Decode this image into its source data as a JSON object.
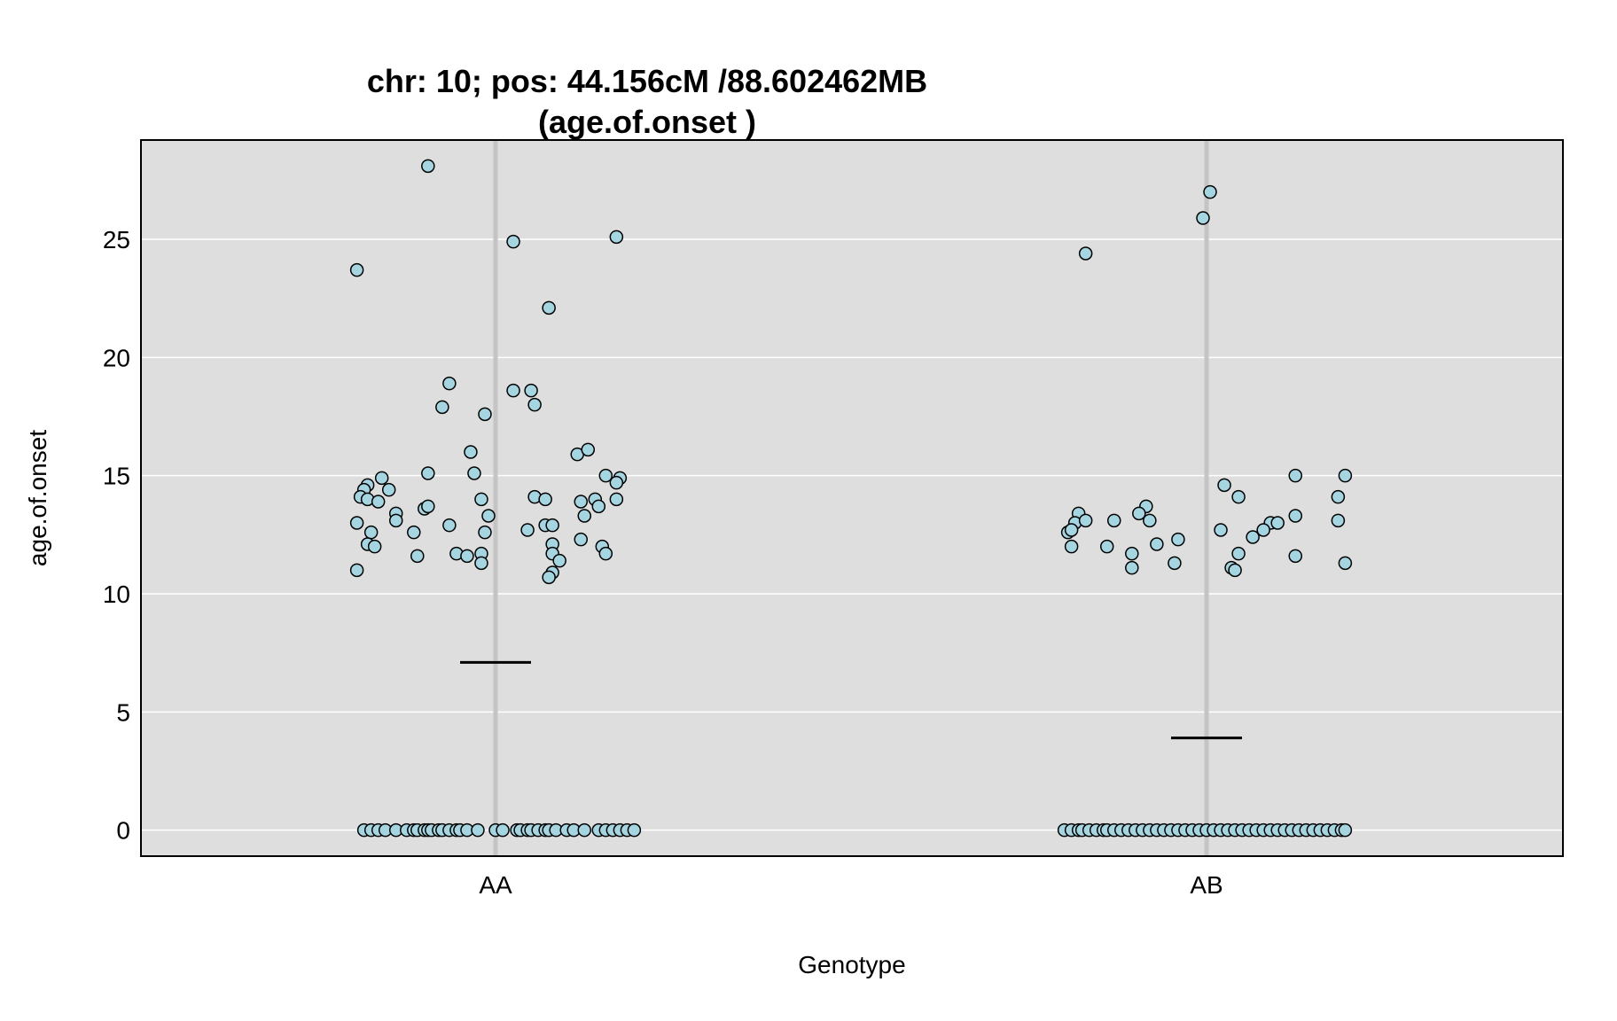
{
  "chart_data": {
    "type": "scatter",
    "title_line1": "chr: 10; pos: 44.156cM /88.602462MB",
    "title_line2": "(age.of.onset )",
    "xlabel": "Genotype",
    "ylabel": "age.of.onset",
    "categories": [
      "AA",
      "AB"
    ],
    "ylim": [
      -1.1,
      29.2
    ],
    "yticks": [
      0,
      5,
      10,
      15,
      20,
      25
    ],
    "grid": true,
    "colors": {
      "panel": "#dedede",
      "point_fill": "#a6d5e2",
      "point_stroke": "#000000",
      "gridline": "#ffffff",
      "category_line": "#c4c4c4",
      "mean_line": "#000000"
    },
    "means": [
      7.1,
      3.9
    ],
    "series": [
      {
        "category": "AA",
        "points": [
          {
            "dx": -0.39,
            "y": 23.7
          },
          {
            "dx": -0.19,
            "y": 28.1
          },
          {
            "dx": 0.05,
            "y": 24.9
          },
          {
            "dx": 0.15,
            "y": 22.1
          },
          {
            "dx": 0.34,
            "y": 25.1
          },
          {
            "dx": -0.13,
            "y": 18.9
          },
          {
            "dx": -0.15,
            "y": 17.9
          },
          {
            "dx": -0.03,
            "y": 17.6
          },
          {
            "dx": 0.05,
            "y": 18.6
          },
          {
            "dx": 0.1,
            "y": 18.6
          },
          {
            "dx": 0.11,
            "y": 18.0
          },
          {
            "dx": -0.07,
            "y": 16.0
          },
          {
            "dx": 0.23,
            "y": 15.9
          },
          {
            "dx": 0.26,
            "y": 16.1
          },
          {
            "dx": -0.32,
            "y": 14.9
          },
          {
            "dx": -0.19,
            "y": 15.1
          },
          {
            "dx": -0.06,
            "y": 15.1
          },
          {
            "dx": 0.31,
            "y": 15.0
          },
          {
            "dx": 0.35,
            "y": 14.9
          },
          {
            "dx": 0.34,
            "y": 14.7
          },
          {
            "dx": -0.36,
            "y": 14.6
          },
          {
            "dx": -0.37,
            "y": 14.4
          },
          {
            "dx": -0.38,
            "y": 14.1
          },
          {
            "dx": -0.36,
            "y": 14.0
          },
          {
            "dx": -0.3,
            "y": 14.4
          },
          {
            "dx": -0.33,
            "y": 13.9
          },
          {
            "dx": -0.04,
            "y": 14.0
          },
          {
            "dx": 0.11,
            "y": 14.1
          },
          {
            "dx": 0.14,
            "y": 14.0
          },
          {
            "dx": 0.24,
            "y": 13.9
          },
          {
            "dx": 0.28,
            "y": 14.0
          },
          {
            "dx": 0.29,
            "y": 13.7
          },
          {
            "dx": 0.34,
            "y": 14.0
          },
          {
            "dx": -0.28,
            "y": 13.4
          },
          {
            "dx": -0.28,
            "y": 13.1
          },
          {
            "dx": -0.2,
            "y": 13.6
          },
          {
            "dx": -0.19,
            "y": 13.7
          },
          {
            "dx": -0.02,
            "y": 13.3
          },
          {
            "dx": 0.25,
            "y": 13.3
          },
          {
            "dx": -0.39,
            "y": 13.0
          },
          {
            "dx": -0.13,
            "y": 12.9
          },
          {
            "dx": 0.14,
            "y": 12.9
          },
          {
            "dx": 0.16,
            "y": 12.9
          },
          {
            "dx": -0.35,
            "y": 12.6
          },
          {
            "dx": -0.23,
            "y": 12.6
          },
          {
            "dx": -0.03,
            "y": 12.6
          },
          {
            "dx": 0.09,
            "y": 12.7
          },
          {
            "dx": 0.24,
            "y": 12.3
          },
          {
            "dx": -0.36,
            "y": 12.1
          },
          {
            "dx": -0.34,
            "y": 12.0
          },
          {
            "dx": 0.16,
            "y": 12.1
          },
          {
            "dx": 0.3,
            "y": 12.0
          },
          {
            "dx": -0.22,
            "y": 11.6
          },
          {
            "dx": -0.11,
            "y": 11.7
          },
          {
            "dx": -0.08,
            "y": 11.6
          },
          {
            "dx": -0.04,
            "y": 11.7
          },
          {
            "dx": -0.04,
            "y": 11.3
          },
          {
            "dx": 0.16,
            "y": 11.7
          },
          {
            "dx": 0.18,
            "y": 11.4
          },
          {
            "dx": 0.31,
            "y": 11.7
          },
          {
            "dx": -0.39,
            "y": 11.0
          },
          {
            "dx": 0.16,
            "y": 10.9
          },
          {
            "dx": 0.15,
            "y": 10.7
          },
          {
            "dx": -0.37,
            "y": 0
          },
          {
            "dx": -0.35,
            "y": 0
          },
          {
            "dx": -0.33,
            "y": 0
          },
          {
            "dx": -0.31,
            "y": 0
          },
          {
            "dx": -0.28,
            "y": 0
          },
          {
            "dx": -0.25,
            "y": 0
          },
          {
            "dx": -0.23,
            "y": 0
          },
          {
            "dx": -0.22,
            "y": 0
          },
          {
            "dx": -0.2,
            "y": 0
          },
          {
            "dx": -0.19,
            "y": 0
          },
          {
            "dx": -0.18,
            "y": 0
          },
          {
            "dx": -0.16,
            "y": 0
          },
          {
            "dx": -0.15,
            "y": 0
          },
          {
            "dx": -0.13,
            "y": 0
          },
          {
            "dx": -0.11,
            "y": 0
          },
          {
            "dx": -0.1,
            "y": 0
          },
          {
            "dx": -0.08,
            "y": 0
          },
          {
            "dx": -0.05,
            "y": 0
          },
          {
            "dx": 0.0,
            "y": 0
          },
          {
            "dx": 0.02,
            "y": 0
          },
          {
            "dx": 0.06,
            "y": 0
          },
          {
            "dx": 0.07,
            "y": 0
          },
          {
            "dx": 0.09,
            "y": 0
          },
          {
            "dx": 0.1,
            "y": 0
          },
          {
            "dx": 0.12,
            "y": 0
          },
          {
            "dx": 0.14,
            "y": 0
          },
          {
            "dx": 0.15,
            "y": 0
          },
          {
            "dx": 0.17,
            "y": 0
          },
          {
            "dx": 0.2,
            "y": 0
          },
          {
            "dx": 0.22,
            "y": 0
          },
          {
            "dx": 0.25,
            "y": 0
          },
          {
            "dx": 0.29,
            "y": 0
          },
          {
            "dx": 0.31,
            "y": 0
          },
          {
            "dx": 0.33,
            "y": 0
          },
          {
            "dx": 0.35,
            "y": 0
          },
          {
            "dx": 0.37,
            "y": 0
          },
          {
            "dx": 0.39,
            "y": 0
          }
        ]
      },
      {
        "category": "AB",
        "points": [
          {
            "dx": 0.01,
            "y": 27.0
          },
          {
            "dx": -0.01,
            "y": 25.9
          },
          {
            "dx": -0.34,
            "y": 24.4
          },
          {
            "dx": 0.25,
            "y": 15.0
          },
          {
            "dx": 0.39,
            "y": 15.0
          },
          {
            "dx": 0.05,
            "y": 14.6
          },
          {
            "dx": 0.09,
            "y": 14.1
          },
          {
            "dx": 0.37,
            "y": 14.1
          },
          {
            "dx": -0.36,
            "y": 13.4
          },
          {
            "dx": -0.17,
            "y": 13.7
          },
          {
            "dx": -0.19,
            "y": 13.4
          },
          {
            "dx": 0.25,
            "y": 13.3
          },
          {
            "dx": -0.37,
            "y": 13.0
          },
          {
            "dx": -0.34,
            "y": 13.1
          },
          {
            "dx": -0.26,
            "y": 13.1
          },
          {
            "dx": -0.16,
            "y": 13.1
          },
          {
            "dx": 0.18,
            "y": 13.0
          },
          {
            "dx": 0.2,
            "y": 13.0
          },
          {
            "dx": 0.37,
            "y": 13.1
          },
          {
            "dx": -0.39,
            "y": 12.6
          },
          {
            "dx": -0.38,
            "y": 12.7
          },
          {
            "dx": 0.04,
            "y": 12.7
          },
          {
            "dx": 0.16,
            "y": 12.7
          },
          {
            "dx": 0.13,
            "y": 12.4
          },
          {
            "dx": -0.08,
            "y": 12.3
          },
          {
            "dx": -0.38,
            "y": 12.0
          },
          {
            "dx": -0.28,
            "y": 12.0
          },
          {
            "dx": -0.14,
            "y": 12.1
          },
          {
            "dx": -0.21,
            "y": 11.7
          },
          {
            "dx": 0.09,
            "y": 11.7
          },
          {
            "dx": 0.25,
            "y": 11.6
          },
          {
            "dx": -0.09,
            "y": 11.3
          },
          {
            "dx": 0.39,
            "y": 11.3
          },
          {
            "dx": -0.21,
            "y": 11.1
          },
          {
            "dx": 0.07,
            "y": 11.1
          },
          {
            "dx": 0.08,
            "y": 11.0
          },
          {
            "dx": -0.4,
            "y": 0
          },
          {
            "dx": -0.38,
            "y": 0
          },
          {
            "dx": -0.36,
            "y": 0
          },
          {
            "dx": -0.35,
            "y": 0
          },
          {
            "dx": -0.33,
            "y": 0
          },
          {
            "dx": -0.31,
            "y": 0
          },
          {
            "dx": -0.29,
            "y": 0
          },
          {
            "dx": -0.28,
            "y": 0
          },
          {
            "dx": -0.26,
            "y": 0
          },
          {
            "dx": -0.24,
            "y": 0
          },
          {
            "dx": -0.22,
            "y": 0
          },
          {
            "dx": -0.2,
            "y": 0
          },
          {
            "dx": -0.18,
            "y": 0
          },
          {
            "dx": -0.16,
            "y": 0
          },
          {
            "dx": -0.14,
            "y": 0
          },
          {
            "dx": -0.12,
            "y": 0
          },
          {
            "dx": -0.1,
            "y": 0
          },
          {
            "dx": -0.08,
            "y": 0
          },
          {
            "dx": -0.06,
            "y": 0
          },
          {
            "dx": -0.04,
            "y": 0
          },
          {
            "dx": -0.02,
            "y": 0
          },
          {
            "dx": 0.0,
            "y": 0
          },
          {
            "dx": 0.02,
            "y": 0
          },
          {
            "dx": 0.04,
            "y": 0
          },
          {
            "dx": 0.06,
            "y": 0
          },
          {
            "dx": 0.08,
            "y": 0
          },
          {
            "dx": 0.1,
            "y": 0
          },
          {
            "dx": 0.12,
            "y": 0
          },
          {
            "dx": 0.14,
            "y": 0
          },
          {
            "dx": 0.16,
            "y": 0
          },
          {
            "dx": 0.18,
            "y": 0
          },
          {
            "dx": 0.2,
            "y": 0
          },
          {
            "dx": 0.22,
            "y": 0
          },
          {
            "dx": 0.24,
            "y": 0
          },
          {
            "dx": 0.26,
            "y": 0
          },
          {
            "dx": 0.28,
            "y": 0
          },
          {
            "dx": 0.3,
            "y": 0
          },
          {
            "dx": 0.32,
            "y": 0
          },
          {
            "dx": 0.34,
            "y": 0
          },
          {
            "dx": 0.36,
            "y": 0
          },
          {
            "dx": 0.38,
            "y": 0
          },
          {
            "dx": 0.39,
            "y": 0
          }
        ]
      }
    ]
  }
}
